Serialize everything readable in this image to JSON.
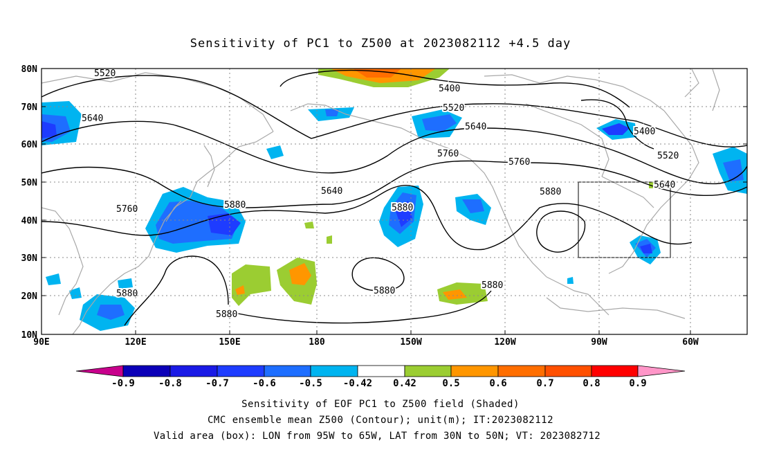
{
  "title": "Sensitivity of PC1 to Z500 at 2023082112 +4.5 day",
  "map": {
    "lat_labels": [
      "80N",
      "70N",
      "60N",
      "50N",
      "40N",
      "30N",
      "20N",
      "10N"
    ],
    "lon_labels": [
      "90E",
      "120E",
      "150E",
      "180",
      "150W",
      "120W",
      "90W",
      "60W"
    ],
    "contour_labels": [
      "5520",
      "5640",
      "5400",
      "5520",
      "5640",
      "5400",
      "5520",
      "5760",
      "5760",
      "5640",
      "5640",
      "5880",
      "5880",
      "5760",
      "5880",
      "5880",
      "5880",
      "5880",
      "5880"
    ],
    "shading_colors": {
      "neg_09": "#0b00b8",
      "neg_08": "#1a1ae6",
      "neg_07": "#1e3cff",
      "neg_06": "#1e6eff",
      "neg_05": "#00b4f0",
      "neutral": "#ffffff",
      "pos_042": "#9bcd32",
      "pos_05": "#ff9600",
      "pos_06": "#ff6e00",
      "pos_07": "#ff5000",
      "pos_08": "#ff2800",
      "pos_09": "#ff0000",
      "low_end": "#c8008c",
      "high_end": "#ff96c8",
      "coast": "#a8a8a8",
      "box": "#000000"
    }
  },
  "colorbar": {
    "labels": [
      "-0.9",
      "-0.8",
      "-0.7",
      "-0.6",
      "-0.5",
      "-0.42",
      "0.42",
      "0.5",
      "0.6",
      "0.7",
      "0.8",
      "0.9"
    ]
  },
  "captions": {
    "line1": "Sensitivity of EOF PC1 to Z500 field (Shaded)",
    "line2": "CMC ensemble mean Z500 (Contour); unit(m); IT:2023082112",
    "line3": "Valid area (box): LON from 95W to 65W, LAT from 30N to 50N; VT: 2023082712"
  }
}
